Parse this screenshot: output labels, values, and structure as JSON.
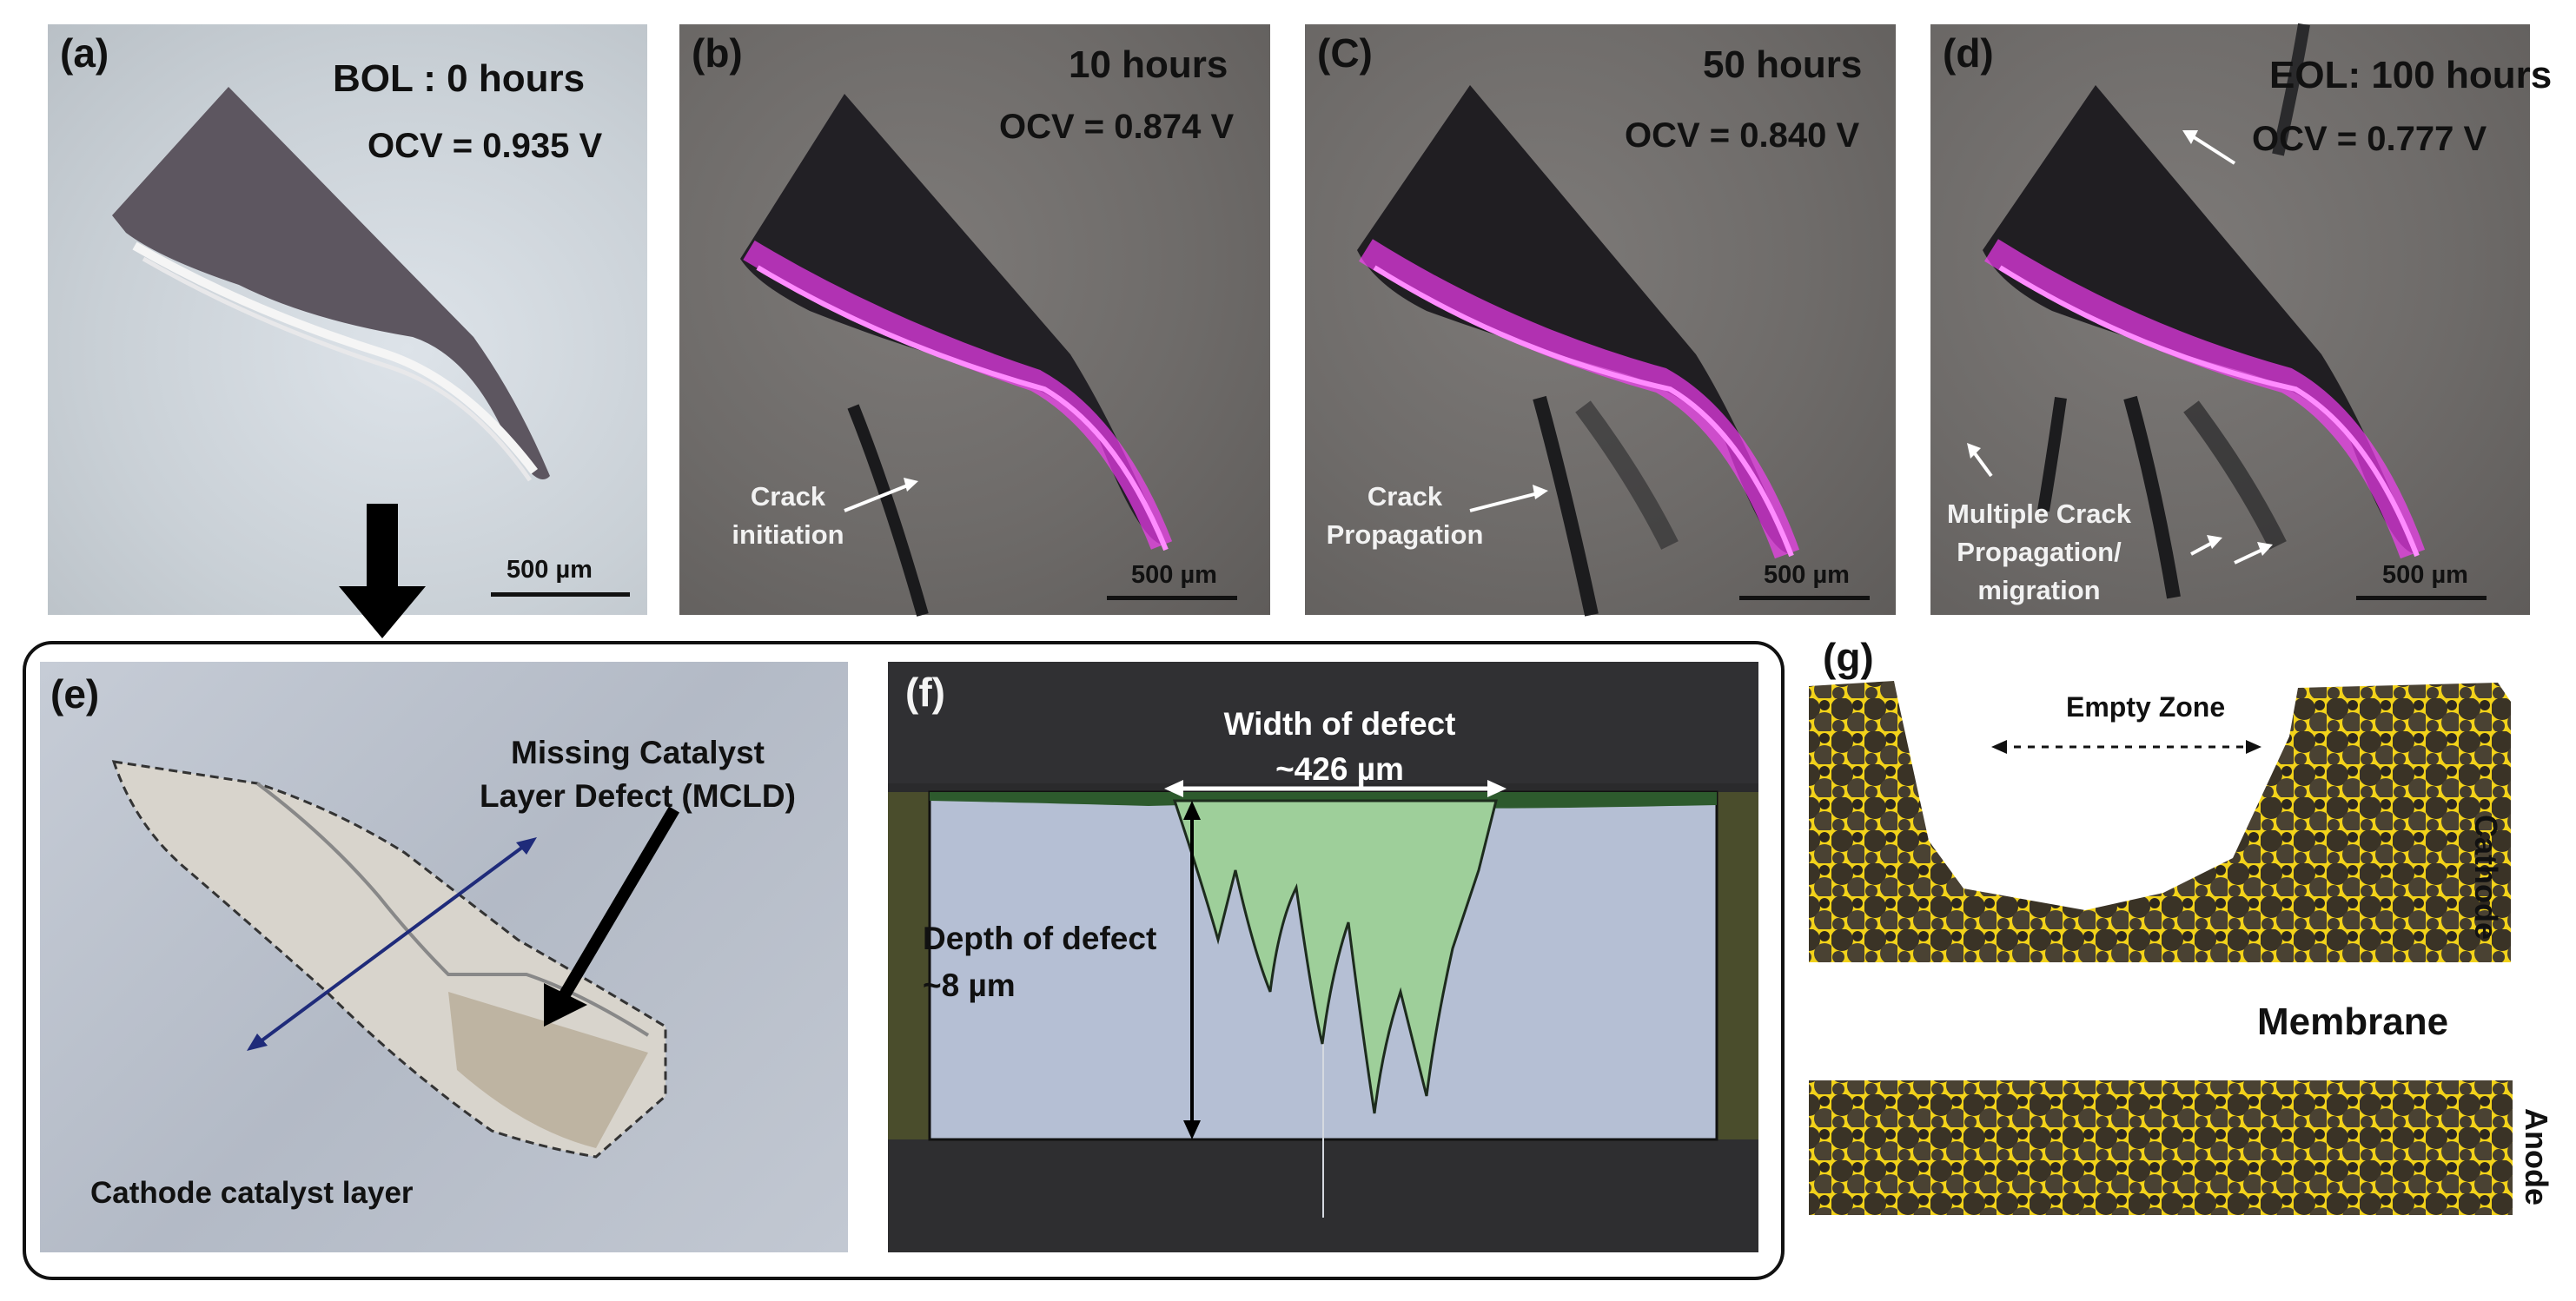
{
  "panels": {
    "a": {
      "label": "(a)",
      "time": "BOL : 0 hours",
      "ocv": "OCV = 0.935 V",
      "scale": "500 µm"
    },
    "b": {
      "label": "(b)",
      "time": "10 hours",
      "ocv": "OCV = 0.874 V",
      "scale": "500 µm",
      "note_line1": "Crack",
      "note_line2": "initiation"
    },
    "c": {
      "label": "(C)",
      "time": "50 hours",
      "ocv": "OCV = 0.840 V",
      "scale": "500 µm",
      "note_line1": "Crack",
      "note_line2": "Propagation"
    },
    "d": {
      "label": "(d)",
      "time": "EOL: 100 hours",
      "ocv": "OCV = 0.777 V",
      "scale": "500 µm",
      "note_line1": "Multiple Crack",
      "note_line2": "Propagation/",
      "note_line3": "migration"
    },
    "e": {
      "label": "(e)",
      "defect_line1": "Missing Catalyst",
      "defect_line2": "Layer Defect (MCLD)",
      "layer_label": "Cathode catalyst layer"
    },
    "f": {
      "label": "(f)",
      "width_line1": "Width of defect",
      "width_line2": "~426 µm",
      "depth_line1": "Depth of defect",
      "depth_line2": "~8 µm"
    },
    "g": {
      "label": "(g)",
      "empty_zone": "Empty Zone",
      "cathode": "Cathode",
      "membrane": "Membrane",
      "anode": "Anode"
    }
  },
  "colors": {
    "fluorescence": "#ff3cff",
    "catalyst_particles": "#3a3326",
    "ionomer": "#f2d21a",
    "defect_volume": "#9ecf9a",
    "background_volume": "#b5bfd4"
  }
}
